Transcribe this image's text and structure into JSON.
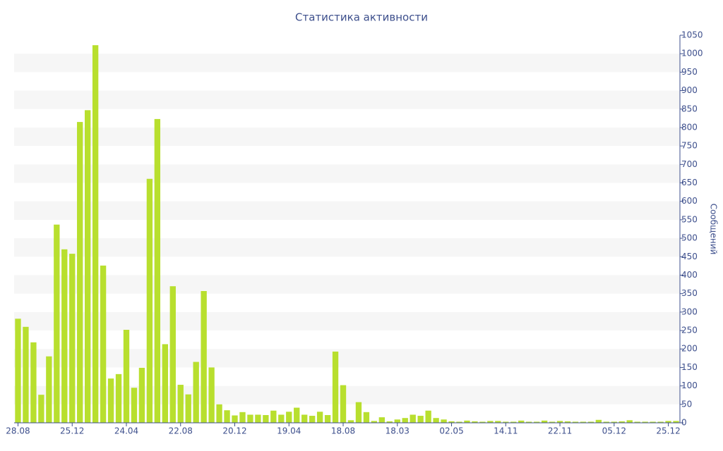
{
  "chart_data": {
    "type": "bar",
    "title": "Статистика активности",
    "y_label": "Сообщений",
    "categories": [
      "28.08",
      null,
      null,
      null,
      null,
      null,
      null,
      "25.12",
      null,
      null,
      null,
      null,
      null,
      null,
      "24.04",
      null,
      null,
      null,
      null,
      null,
      null,
      "22.08",
      null,
      null,
      null,
      null,
      null,
      null,
      "20.12",
      null,
      null,
      null,
      null,
      null,
      null,
      "19.04",
      null,
      null,
      null,
      null,
      null,
      null,
      "18.08",
      null,
      null,
      null,
      null,
      null,
      null,
      "18.03",
      null,
      null,
      null,
      null,
      null,
      null,
      "02.05",
      null,
      null,
      null,
      null,
      null,
      null,
      "14.11",
      null,
      null,
      null,
      null,
      null,
      null,
      "22.11",
      null,
      null,
      null,
      null,
      null,
      null,
      "05.12",
      null,
      null,
      null,
      null,
      null,
      null,
      "25.12",
      null
    ],
    "values": [
      282,
      260,
      218,
      76,
      180,
      537,
      470,
      458,
      815,
      847,
      1023,
      426,
      120,
      132,
      252,
      95,
      149,
      661,
      823,
      213,
      370,
      103,
      77,
      165,
      357,
      150,
      50,
      34,
      20,
      29,
      22,
      22,
      21,
      33,
      22,
      30,
      41,
      22,
      19,
      30,
      21,
      193,
      102,
      7,
      56,
      29,
      5,
      15,
      4,
      9,
      13,
      22,
      19,
      33,
      13,
      9,
      4,
      3,
      6,
      4,
      3,
      5,
      5,
      3,
      3,
      6,
      3,
      3,
      6,
      3,
      5,
      4,
      3,
      3,
      3,
      8,
      3,
      3,
      4,
      7,
      3,
      3,
      3,
      3,
      5,
      5
    ],
    "color": "#b8df2e",
    "ylim": [
      0,
      1050
    ],
    "yticks": [
      0,
      50,
      100,
      150,
      200,
      250,
      300,
      350,
      400,
      450,
      500,
      550,
      600,
      650,
      700,
      750,
      800,
      850,
      900,
      950,
      1000,
      1050
    ],
    "y_axis_side": "right",
    "alternate_bands": true
  }
}
